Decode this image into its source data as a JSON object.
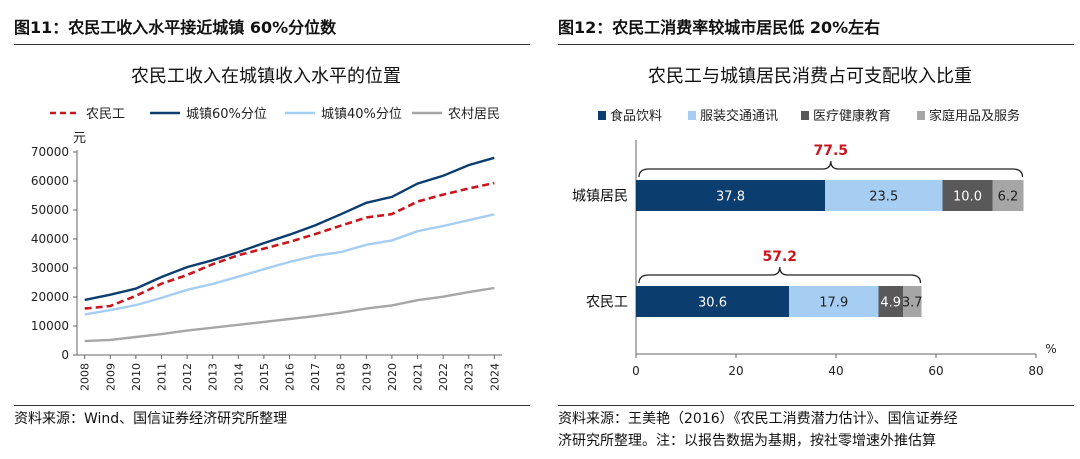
{
  "left": {
    "figure_title": "图11：农民工收入水平接近城镇 60%分位数",
    "source": "资料来源：Wind、国信证券经济研究所整理"
  },
  "right": {
    "figure_title": "图12：农民工消费率较城市居民低 20%左右",
    "source_line1": "资料来源：王美艳（2016）《农民工消费潜力估计》、国信证券经",
    "source_line2": "济研究所整理。注：以报告数据为基期，按社零增速外推估算"
  },
  "colors": {
    "navy": "#0b3d6e",
    "lightblue": "#a6cdf2",
    "darkgray": "#595959",
    "gray": "#a6a6a6",
    "red": "#c8161d",
    "bg": "#ffffff"
  },
  "chart_data": [
    {
      "type": "line",
      "title": "农民工收入在城镇收入水平的位置",
      "ylabel": "元",
      "xlabel": "",
      "ylim": [
        0,
        70000
      ],
      "yticks": [
        0,
        10000,
        20000,
        30000,
        40000,
        50000,
        60000,
        70000
      ],
      "grid": false,
      "legend_position": "top",
      "x": [
        "2008",
        "2009",
        "2010",
        "2011",
        "2012",
        "2013",
        "2014",
        "2015",
        "2016",
        "2017",
        "2018",
        "2019",
        "2020",
        "2021",
        "2022",
        "2023",
        "2024"
      ],
      "series": [
        {
          "name": "农民工",
          "style": "dashed",
          "color": "#c8161d",
          "values": [
            16000,
            16900,
            20400,
            24600,
            27600,
            31300,
            34400,
            36700,
            39000,
            41700,
            44600,
            47400,
            48600,
            52900,
            55300,
            57400,
            59300
          ]
        },
        {
          "name": "城镇60%分位",
          "style": "solid",
          "color": "#0b3d6e",
          "values": [
            19000,
            20800,
            22900,
            26900,
            30300,
            32700,
            35500,
            38600,
            41500,
            44700,
            48500,
            52500,
            54500,
            59100,
            61800,
            65500,
            68000
          ]
        },
        {
          "name": "城镇40%分位",
          "style": "solid",
          "color": "#a6cdf2",
          "values": [
            14000,
            15500,
            17200,
            19700,
            22500,
            24500,
            27000,
            29600,
            32100,
            34200,
            35500,
            38000,
            39500,
            42700,
            44500,
            46500,
            48500
          ]
        },
        {
          "name": "农村居民",
          "style": "solid",
          "color": "#a6a6a6",
          "values": [
            4800,
            5200,
            6200,
            7200,
            8400,
            9400,
            10400,
            11400,
            12400,
            13400,
            14600,
            16000,
            17100,
            18900,
            20100,
            21700,
            23100
          ]
        }
      ]
    },
    {
      "type": "bar",
      "orientation": "horizontal",
      "stacked": true,
      "title": "农民工与城镇居民消费占可支配收入比重",
      "unit_label": "%",
      "xlim": [
        0,
        80
      ],
      "xticks": [
        0,
        20,
        40,
        60,
        80
      ],
      "legend_position": "top",
      "categories": [
        "城镇居民",
        "农民工"
      ],
      "totals": [
        "77.5",
        "57.2"
      ],
      "series": [
        {
          "name": "食品饮料",
          "color": "#0b3d6e",
          "values": [
            37.8,
            30.6
          ],
          "labels": [
            "37.8",
            "30.6"
          ],
          "label_color": "#ffffff"
        },
        {
          "name": "服装交通通讯",
          "color": "#a6cdf2",
          "values": [
            23.5,
            17.9
          ],
          "labels": [
            "23.5",
            "17.9"
          ],
          "label_color": "#222222"
        },
        {
          "name": "医疗健康教育",
          "color": "#595959",
          "values": [
            10.0,
            4.9
          ],
          "labels": [
            "10.0",
            "4.9"
          ],
          "label_color": "#ffffff"
        },
        {
          "name": "家庭用品及服务",
          "color": "#a6a6a6",
          "values": [
            6.2,
            3.7
          ],
          "labels": [
            "6.2",
            "3.7"
          ],
          "label_color": "#222222"
        }
      ]
    }
  ]
}
